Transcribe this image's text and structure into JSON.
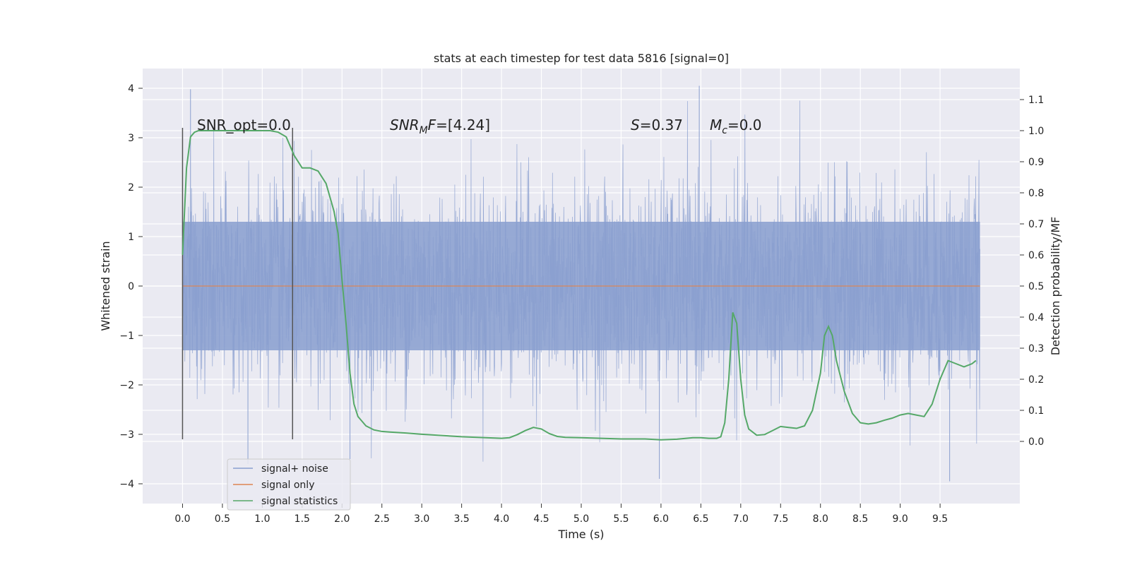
{
  "chart_data": {
    "type": "line",
    "title": "stats at each timestep for test data 5816 [signal=0]",
    "xlabel": "Time (s)",
    "ylabel": "Whitened strain",
    "y2label": "Detection probability/MF",
    "xlim": [
      -0.5,
      10.5
    ],
    "ylim": [
      -4.4,
      4.4
    ],
    "y2lim": [
      -0.2,
      1.2
    ],
    "x_ticks": [
      "0.0",
      "0.5",
      "1.0",
      "1.5",
      "2.0",
      "2.5",
      "3.0",
      "3.5",
      "4.0",
      "4.5",
      "5.0",
      "5.5",
      "6.0",
      "6.5",
      "7.0",
      "7.5",
      "8.0",
      "8.5",
      "9.0",
      "9.5"
    ],
    "y_ticks": [
      "4",
      "3",
      "2",
      "1",
      "0",
      "−1",
      "−2",
      "−3",
      "−4"
    ],
    "y2_ticks": [
      "1.1",
      "1.0",
      "0.9",
      "0.8",
      "0.7",
      "0.6",
      "0.5",
      "0.4",
      "0.3",
      "0.2",
      "0.1",
      "0.0"
    ],
    "grid": true,
    "legend_position": "lower-left",
    "annotations": {
      "snr_opt": "SNR_opt=0.0",
      "snr_mf_italic": "SNR",
      "snr_mf_sub": "M",
      "snr_mf_italic2": "F",
      "snr_mf_rest": "=[4.24]",
      "s_italic": "S",
      "s_rest": "=0.37",
      "mc_italic": "M",
      "mc_sub": "c",
      "mc_rest": "=0.0"
    },
    "vertical_lines": [
      {
        "x": 0.0,
        "ymin": -3.1,
        "ymax": 3.2
      },
      {
        "x": 1.38,
        "ymin": -3.1,
        "ymax": 3.2
      }
    ],
    "series": [
      {
        "name": "signal+ noise",
        "color": "#8a9fcf",
        "axis": "left",
        "x_range": [
          0,
          10
        ],
        "band": [
          -1.3,
          1.3
        ],
        "peak_max": 4.05,
        "peak_min": -3.95,
        "note_shape": "noise"
      },
      {
        "name": "signal only",
        "color": "#dd8452",
        "axis": "left",
        "x": [
          0,
          10
        ],
        "values": [
          0,
          0
        ]
      },
      {
        "name": "signal statistics",
        "color": "#55a868",
        "axis": "right",
        "x": [
          0.0,
          0.05,
          0.1,
          0.15,
          0.2,
          0.3,
          0.4,
          0.6,
          0.8,
          1.0,
          1.1,
          1.2,
          1.3,
          1.4,
          1.5,
          1.6,
          1.7,
          1.8,
          1.9,
          1.95,
          2.0,
          2.05,
          2.1,
          2.15,
          2.2,
          2.3,
          2.4,
          2.5,
          2.6,
          2.8,
          3.0,
          3.5,
          4.0,
          4.1,
          4.2,
          4.3,
          4.4,
          4.5,
          4.6,
          4.7,
          4.8,
          5.0,
          5.5,
          5.8,
          6.0,
          6.2,
          6.4,
          6.5,
          6.6,
          6.7,
          6.75,
          6.8,
          6.85,
          6.9,
          6.95,
          7.0,
          7.05,
          7.1,
          7.2,
          7.3,
          7.4,
          7.5,
          7.6,
          7.7,
          7.8,
          7.9,
          8.0,
          8.05,
          8.1,
          8.15,
          8.2,
          8.3,
          8.4,
          8.5,
          8.6,
          8.7,
          8.8,
          8.9,
          9.0,
          9.1,
          9.2,
          9.3,
          9.4,
          9.5,
          9.6,
          9.7,
          9.8,
          9.9,
          9.95
        ],
        "values": [
          0.6,
          0.88,
          0.98,
          0.995,
          1.0,
          1.0,
          1.0,
          1.0,
          1.0,
          1.0,
          1.0,
          0.995,
          0.98,
          0.92,
          0.88,
          0.88,
          0.87,
          0.83,
          0.74,
          0.67,
          0.52,
          0.38,
          0.22,
          0.12,
          0.08,
          0.05,
          0.037,
          0.032,
          0.03,
          0.027,
          0.023,
          0.015,
          0.01,
          0.012,
          0.022,
          0.035,
          0.045,
          0.04,
          0.025,
          0.016,
          0.013,
          0.012,
          0.008,
          0.008,
          0.005,
          0.007,
          0.012,
          0.012,
          0.01,
          0.01,
          0.015,
          0.06,
          0.2,
          0.415,
          0.38,
          0.2,
          0.085,
          0.04,
          0.02,
          0.022,
          0.035,
          0.048,
          0.045,
          0.042,
          0.05,
          0.1,
          0.22,
          0.34,
          0.37,
          0.34,
          0.26,
          0.16,
          0.09,
          0.06,
          0.056,
          0.06,
          0.068,
          0.075,
          0.085,
          0.09,
          0.085,
          0.08,
          0.12,
          0.2,
          0.26,
          0.25,
          0.24,
          0.25,
          0.26
        ]
      }
    ]
  }
}
